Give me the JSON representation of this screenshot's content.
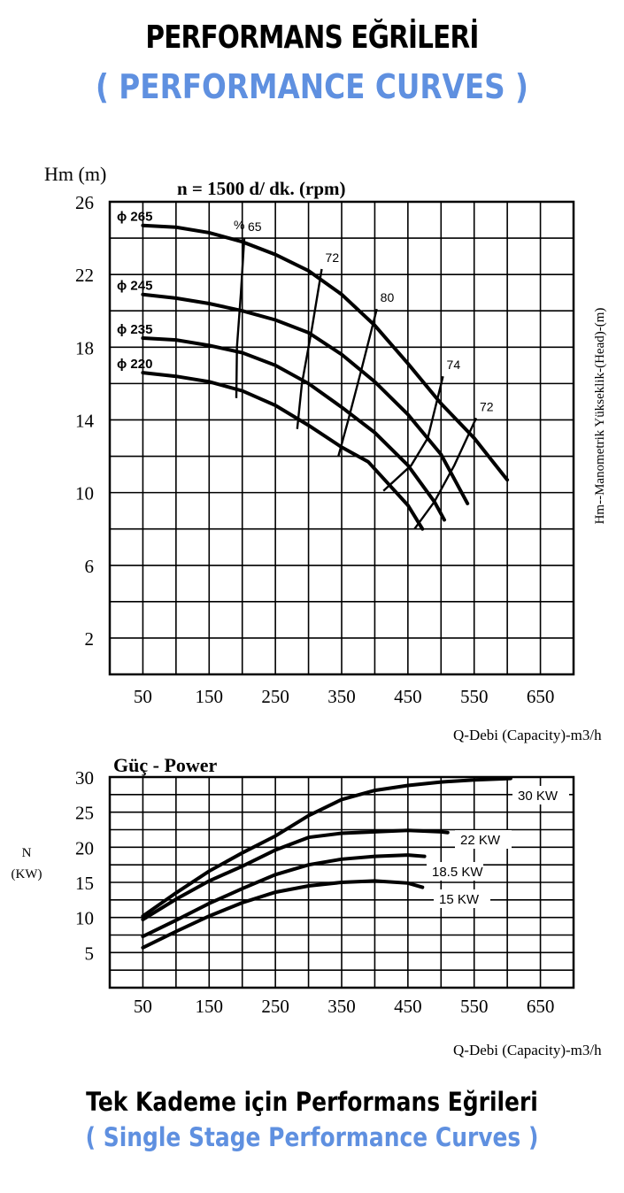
{
  "header": {
    "title": "PERFORMANS EĞRİLERİ",
    "subtitle": "( PERFORMANCE CURVES )"
  },
  "footer": {
    "title": "Tek Kademe için Performans Eğrileri",
    "subtitle": "( Single Stage Performance Curves )"
  },
  "colors": {
    "accent": "#5f90e0",
    "ink": "#000000"
  },
  "chart_data": [
    {
      "type": "line",
      "title": "n = 1500 d/ dk.  (rpm)",
      "ylabel": "Hm (m)",
      "ylabel_right": "Hm--Manometrik Yükseklik-(Head)-(m)",
      "xlabel": "Q-Debi (Capacity)-m3/h",
      "x_ticks": [
        50,
        150,
        250,
        350,
        450,
        550,
        650
      ],
      "y_ticks": [
        2,
        6,
        10,
        14,
        18,
        22,
        26
      ],
      "xlim": [
        0,
        700
      ],
      "ylim": [
        0,
        26
      ],
      "grid": true,
      "series": [
        {
          "name": "ϕ 265",
          "points": [
            [
              50,
              24.7
            ],
            [
              100,
              24.6
            ],
            [
              150,
              24.3
            ],
            [
              200,
              23.8
            ],
            [
              250,
              23.1
            ],
            [
              300,
              22.2
            ],
            [
              350,
              20.9
            ],
            [
              400,
              19.2
            ],
            [
              450,
              17.1
            ],
            [
              500,
              14.9
            ],
            [
              550,
              13.0
            ],
            [
              600,
              10.7
            ]
          ]
        },
        {
          "name": "ϕ 245",
          "points": [
            [
              50,
              20.9
            ],
            [
              100,
              20.7
            ],
            [
              150,
              20.4
            ],
            [
              200,
              20.0
            ],
            [
              250,
              19.5
            ],
            [
              300,
              18.8
            ],
            [
              350,
              17.6
            ],
            [
              400,
              16.1
            ],
            [
              450,
              14.3
            ],
            [
              500,
              12.1
            ],
            [
              540,
              9.4
            ]
          ]
        },
        {
          "name": "ϕ 235",
          "points": [
            [
              50,
              18.5
            ],
            [
              100,
              18.4
            ],
            [
              150,
              18.1
            ],
            [
              200,
              17.7
            ],
            [
              250,
              17.0
            ],
            [
              300,
              16.0
            ],
            [
              350,
              14.7
            ],
            [
              400,
              13.3
            ],
            [
              450,
              11.5
            ],
            [
              490,
              9.5
            ],
            [
              505,
              8.5
            ]
          ]
        },
        {
          "name": "ϕ 220",
          "points": [
            [
              50,
              16.6
            ],
            [
              100,
              16.4
            ],
            [
              150,
              16.1
            ],
            [
              200,
              15.6
            ],
            [
              250,
              14.8
            ],
            [
              300,
              13.7
            ],
            [
              350,
              12.5
            ],
            [
              390,
              11.7
            ],
            [
              420,
              10.5
            ],
            [
              450,
              9.3
            ],
            [
              472,
              8.0
            ]
          ]
        }
      ],
      "efficiency_lines": [
        {
          "name": "65",
          "points": [
            [
              203,
              24.0
            ],
            [
              198,
              21
            ],
            [
              192,
              18
            ],
            [
              191,
              15.2
            ]
          ]
        },
        {
          "name": "72",
          "points": [
            [
              320,
              22.3
            ],
            [
              305,
              19
            ],
            [
              290,
              16
            ],
            [
              283,
              13.5
            ]
          ]
        },
        {
          "name": "80",
          "points": [
            [
              403,
              20.1
            ],
            [
              380,
              16.8
            ],
            [
              360,
              14
            ],
            [
              345,
              12.0
            ]
          ]
        },
        {
          "name": "74",
          "points": [
            [
              503,
              16.4
            ],
            [
              480,
              13
            ],
            [
              455,
              11.5
            ],
            [
              413,
              10.1
            ]
          ]
        },
        {
          "name": "72",
          "points": [
            [
              553,
              14.1
            ],
            [
              520,
              11.5
            ],
            [
              490,
              9.5
            ],
            [
              460,
              8.0
            ]
          ]
        }
      ],
      "annotations": [
        "%"
      ]
    },
    {
      "type": "line",
      "title": "Güç - Power",
      "ylabel": "N",
      "ylabel_unit": "(KW)",
      "xlabel": "Q-Debi (Capacity)-m3/h",
      "x_ticks": [
        50,
        150,
        250,
        350,
        450,
        550,
        650
      ],
      "y_ticks": [
        5,
        10,
        15,
        20,
        25,
        30
      ],
      "xlim": [
        0,
        700
      ],
      "ylim": [
        0,
        30
      ],
      "grid": true,
      "series": [
        {
          "name": "30 KW",
          "points": [
            [
              50,
              10.2
            ],
            [
              100,
              13.5
            ],
            [
              150,
              16.6
            ],
            [
              200,
              19.2
            ],
            [
              250,
              21.6
            ],
            [
              300,
              24.5
            ],
            [
              350,
              26.8
            ],
            [
              400,
              28.1
            ],
            [
              450,
              28.8
            ],
            [
              500,
              29.3
            ],
            [
              550,
              29.6
            ],
            [
              605,
              29.8
            ]
          ]
        },
        {
          "name": "22 KW",
          "points": [
            [
              50,
              9.7
            ],
            [
              100,
              12.6
            ],
            [
              150,
              15.2
            ],
            [
              200,
              17.3
            ],
            [
              250,
              19.6
            ],
            [
              300,
              21.4
            ],
            [
              350,
              22.0
            ],
            [
              400,
              22.2
            ],
            [
              450,
              22.4
            ],
            [
              500,
              22.2
            ],
            [
              510,
              22.1
            ]
          ]
        },
        {
          "name": "18.5 KW",
          "points": [
            [
              50,
              7.3
            ],
            [
              100,
              9.6
            ],
            [
              150,
              12.0
            ],
            [
              200,
              14.1
            ],
            [
              250,
              16.1
            ],
            [
              300,
              17.5
            ],
            [
              350,
              18.3
            ],
            [
              400,
              18.7
            ],
            [
              450,
              18.9
            ],
            [
              475,
              18.7
            ]
          ]
        },
        {
          "name": "15 KW",
          "points": [
            [
              50,
              5.7
            ],
            [
              100,
              8.0
            ],
            [
              150,
              10.2
            ],
            [
              200,
              12.1
            ],
            [
              250,
              13.6
            ],
            [
              300,
              14.5
            ],
            [
              350,
              15.0
            ],
            [
              400,
              15.2
            ],
            [
              450,
              14.9
            ],
            [
              472,
              14.3
            ]
          ]
        }
      ]
    }
  ]
}
